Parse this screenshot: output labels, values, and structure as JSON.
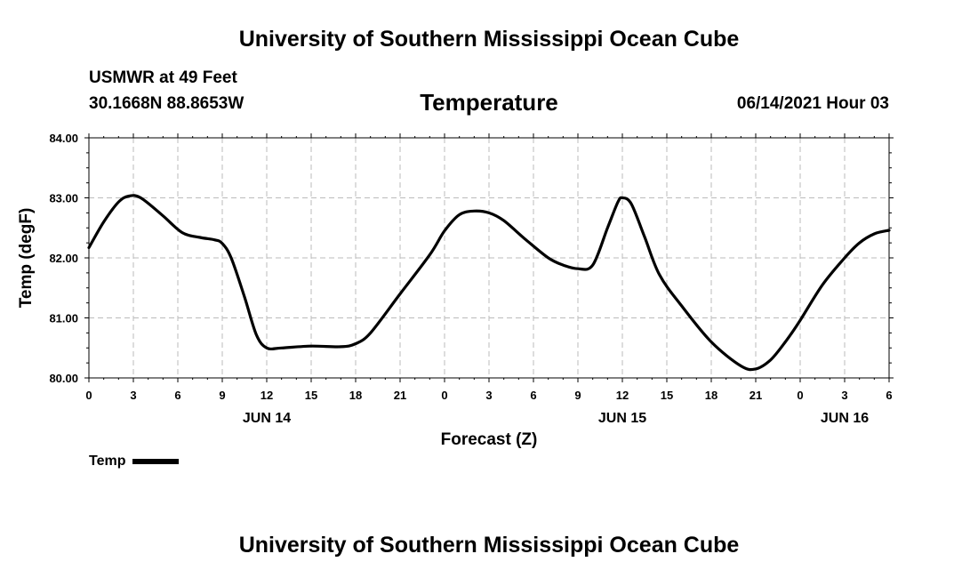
{
  "header": {
    "title": "University of Southern Mississippi Ocean Cube",
    "station": "USMWR at 49 Feet",
    "coords": "30.1668N  88.8653W",
    "variable": "Temperature",
    "datetime": "06/14/2021 Hour 03"
  },
  "footer": {
    "title": "University of Southern Mississippi Ocean Cube"
  },
  "legend": {
    "label": "Temp"
  },
  "chart_data": {
    "type": "line",
    "xlabel": "Forecast (Z)",
    "ylabel": "Temp (degF)",
    "ylim": [
      80.0,
      84.0
    ],
    "xlim": [
      0,
      54
    ],
    "y_ticks": [
      "80.00",
      "81.00",
      "82.00",
      "83.00",
      "84.00"
    ],
    "x_tick_labels": [
      "0",
      "3",
      "6",
      "9",
      "12",
      "15",
      "18",
      "21",
      "0",
      "3",
      "6",
      "9",
      "12",
      "15",
      "18",
      "21",
      "0",
      "3",
      "6"
    ],
    "date_labels": [
      {
        "text": "JUN 14",
        "hour": 12
      },
      {
        "text": "JUN 15",
        "hour": 36
      },
      {
        "text": "JUN 16",
        "hour": 51
      }
    ],
    "grid": true,
    "series": [
      {
        "name": "Temp",
        "color": "#000000",
        "x": [
          0,
          1,
          2,
          2.7,
          3.5,
          5,
          6.3,
          7.5,
          8.5,
          9,
          9.6,
          10.5,
          11.3,
          12,
          13,
          15,
          17,
          18,
          19,
          21,
          23,
          24,
          25,
          26,
          27,
          28,
          29.5,
          31,
          32,
          33,
          34,
          35,
          35.7,
          36,
          36.6,
          37.5,
          38.5,
          40,
          42,
          44,
          45,
          46,
          47,
          48,
          49.5,
          51,
          52,
          53,
          54
        ],
        "values": [
          82.17,
          82.6,
          82.93,
          83.03,
          83.0,
          82.7,
          82.42,
          82.34,
          82.3,
          82.24,
          82.0,
          81.35,
          80.72,
          80.5,
          80.5,
          80.53,
          80.52,
          80.57,
          80.75,
          81.4,
          82.05,
          82.45,
          82.72,
          82.78,
          82.75,
          82.62,
          82.3,
          82.0,
          81.88,
          81.82,
          81.88,
          82.5,
          82.93,
          83.0,
          82.9,
          82.35,
          81.72,
          81.2,
          80.6,
          80.2,
          80.15,
          80.3,
          80.6,
          80.96,
          81.55,
          82.0,
          82.25,
          82.4,
          82.46
        ]
      }
    ]
  }
}
